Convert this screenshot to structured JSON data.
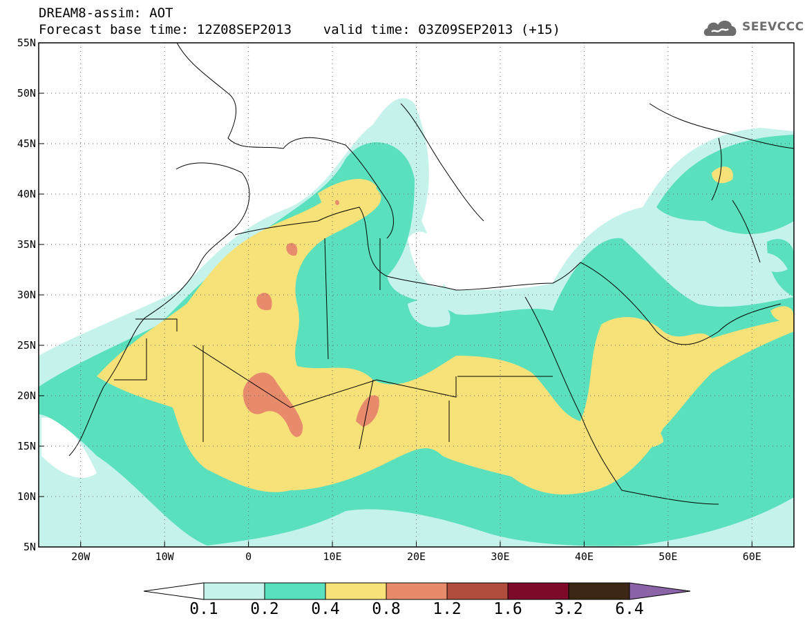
{
  "title": {
    "line1": "DREAM8-assim: AOT",
    "line2": "Forecast base time: 12Z08SEP2013    valid time: 03Z09SEP2013 (+15)"
  },
  "logo": {
    "text": "SEEVCCC",
    "icon": "cloud-logo-icon"
  },
  "map": {
    "lon_range": [
      -25,
      65
    ],
    "lat_range": [
      5,
      55
    ],
    "lon_ticks": [
      {
        "value": -20,
        "label": "20W"
      },
      {
        "value": -10,
        "label": "10W"
      },
      {
        "value": 0,
        "label": "0"
      },
      {
        "value": 10,
        "label": "10E"
      },
      {
        "value": 20,
        "label": "20E"
      },
      {
        "value": 30,
        "label": "30E"
      },
      {
        "value": 40,
        "label": "40E"
      },
      {
        "value": 50,
        "label": "50E"
      },
      {
        "value": 60,
        "label": "60E"
      }
    ],
    "lat_ticks": [
      {
        "value": 55,
        "label": "55N"
      },
      {
        "value": 50,
        "label": "50N"
      },
      {
        "value": 45,
        "label": "45N"
      },
      {
        "value": 40,
        "label": "40N"
      },
      {
        "value": 35,
        "label": "35N"
      },
      {
        "value": 30,
        "label": "30N"
      },
      {
        "value": 25,
        "label": "25N"
      },
      {
        "value": 20,
        "label": "20N"
      },
      {
        "value": 15,
        "label": "15N"
      },
      {
        "value": 10,
        "label": "10N"
      },
      {
        "value": 5,
        "label": "5N"
      }
    ],
    "gridlines": true
  },
  "colorbar": {
    "colors": [
      "#c6f2ec",
      "#5ae0bc",
      "#f7e27a",
      "#e88b6c",
      "#b04c3c",
      "#7d0a28",
      "#3c2614",
      "#8a64a6"
    ],
    "labels": [
      "0.1",
      "0.2",
      "0.4",
      "0.8",
      "1.2",
      "1.6",
      "3.2",
      "6.4"
    ]
  },
  "colors": {
    "lvl1": "#c6f2ec",
    "lvl2": "#5ae0bc",
    "lvl3": "#f7e27a",
    "lvl4": "#e88b6c",
    "logo": "#6d6d6d"
  }
}
